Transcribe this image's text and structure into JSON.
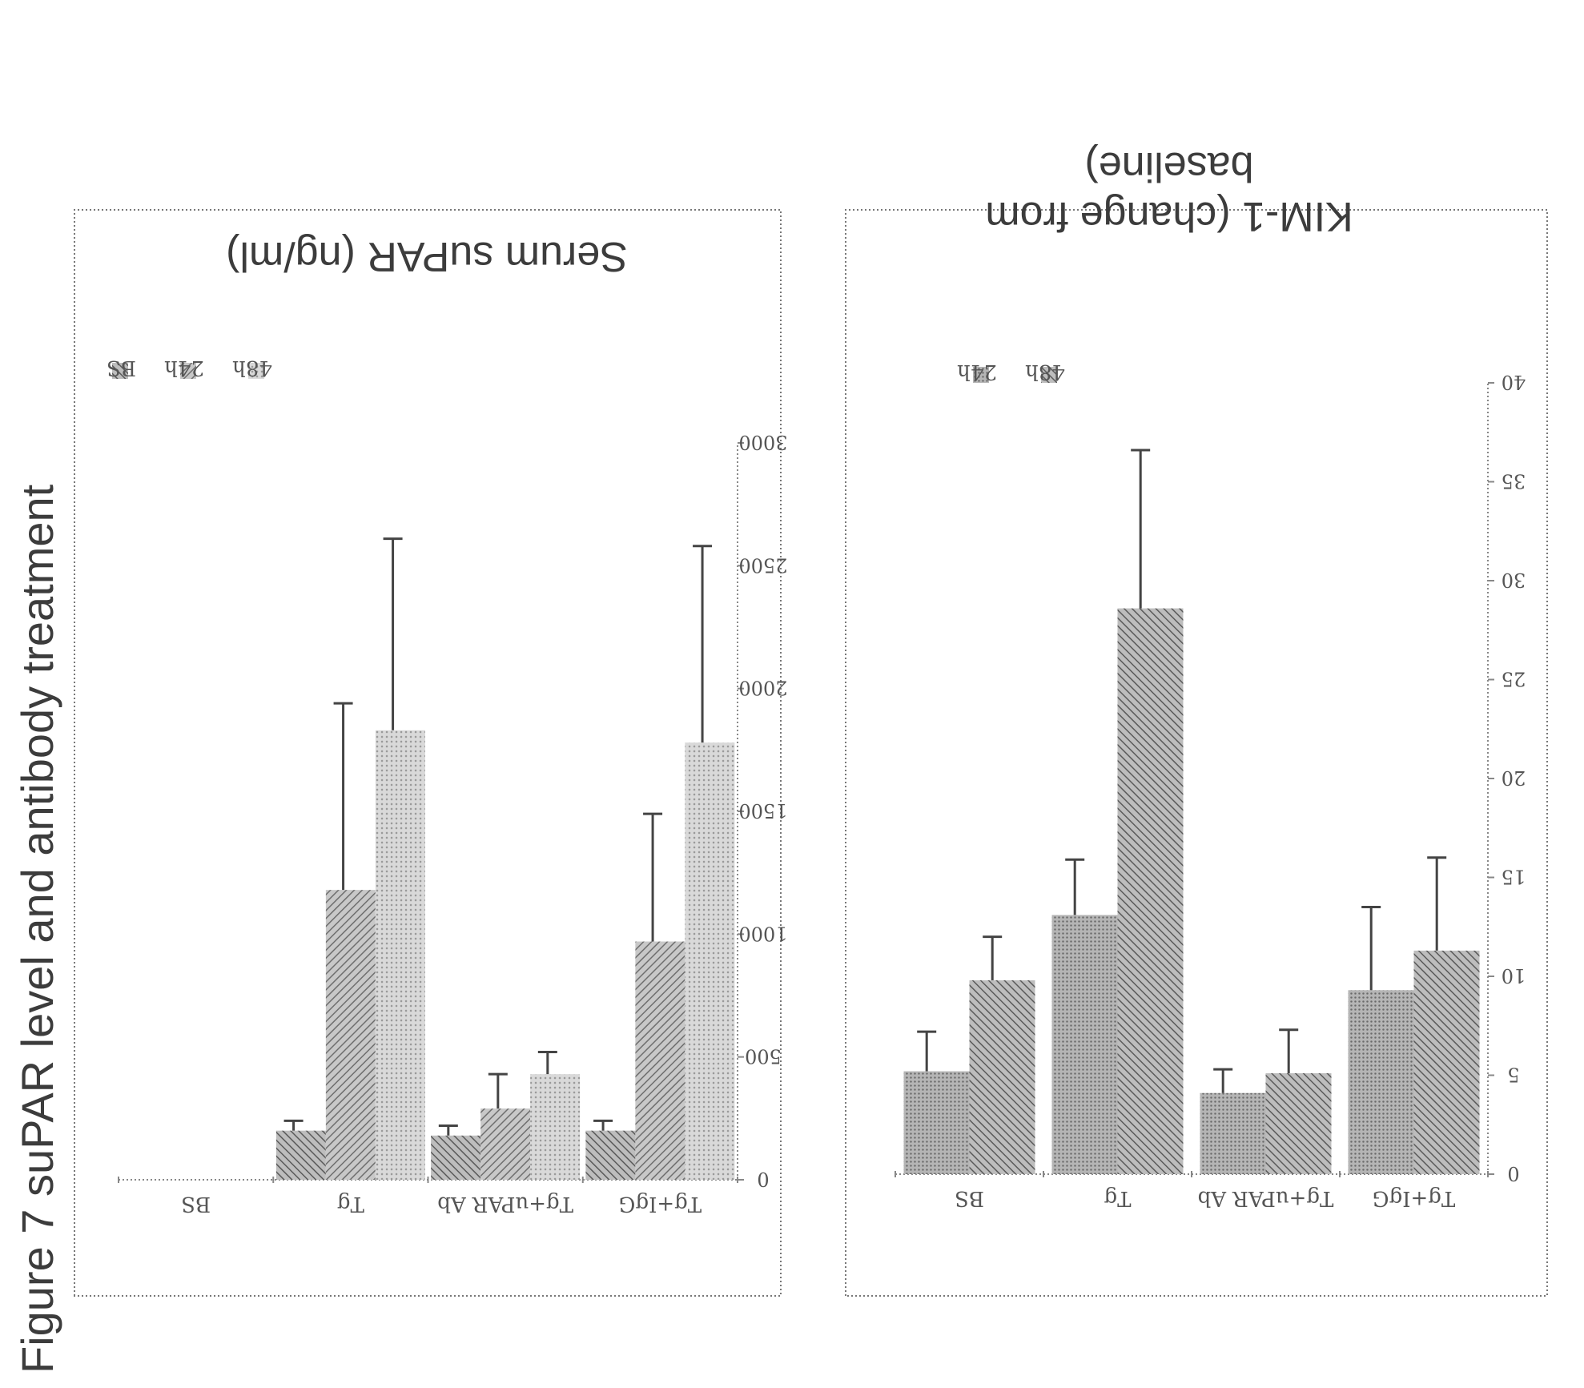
{
  "figure_title": "Figure 7 suPAR level and antibody treatment",
  "colors": {
    "ink": "#555555",
    "frame": "#777777",
    "bs": "#8a8a8a",
    "h24": "#7c7c7c",
    "h48": "#c4c4c4"
  },
  "chart_data": [
    {
      "type": "bar",
      "ylabel": "Serum suPAR (ng/ml)",
      "ylim": [
        0,
        3000
      ],
      "yticks": [
        0,
        500,
        1000,
        1500,
        2000,
        2500,
        3000
      ],
      "categories": [
        "BS",
        "Tg",
        "Tg+uPAR Ab",
        "Tg+IgG"
      ],
      "legend_position": "top-right",
      "series": [
        {
          "name": "BS",
          "color": "#8a8a8a",
          "pattern": "diag",
          "values": [
            0,
            200,
            180,
            200
          ],
          "errors": [
            0,
            40,
            40,
            40
          ]
        },
        {
          "name": "24h",
          "color": "#7c7c7c",
          "pattern": "diag",
          "values": [
            0,
            1180,
            290,
            970
          ],
          "errors": [
            0,
            760,
            140,
            520
          ]
        },
        {
          "name": "48h",
          "color": "#c4c4c4",
          "pattern": "dots",
          "values": [
            0,
            1830,
            430,
            1780
          ],
          "errors": [
            0,
            780,
            90,
            800
          ]
        }
      ]
    },
    {
      "type": "bar",
      "ylabel": "KIM-1 (change from baseline)",
      "ylim": [
        0,
        40
      ],
      "yticks": [
        0,
        5,
        10,
        15,
        20,
        25,
        30,
        35,
        40
      ],
      "categories": [
        "BS",
        "Tg",
        "Tg+uPAR Ab",
        "Tg+IgG"
      ],
      "legend_position": "top-right",
      "series": [
        {
          "name": "24h",
          "color": "#8a8a8a",
          "pattern": "dots",
          "values": [
            5.2,
            13.1,
            4.1,
            9.3
          ],
          "errors": [
            2.0,
            2.8,
            1.2,
            4.2
          ]
        },
        {
          "name": "48h",
          "color": "#7c7c7c",
          "pattern": "diag",
          "values": [
            9.8,
            28.6,
            5.1,
            11.3
          ],
          "errors": [
            2.2,
            8.0,
            2.2,
            4.7
          ]
        }
      ]
    }
  ]
}
